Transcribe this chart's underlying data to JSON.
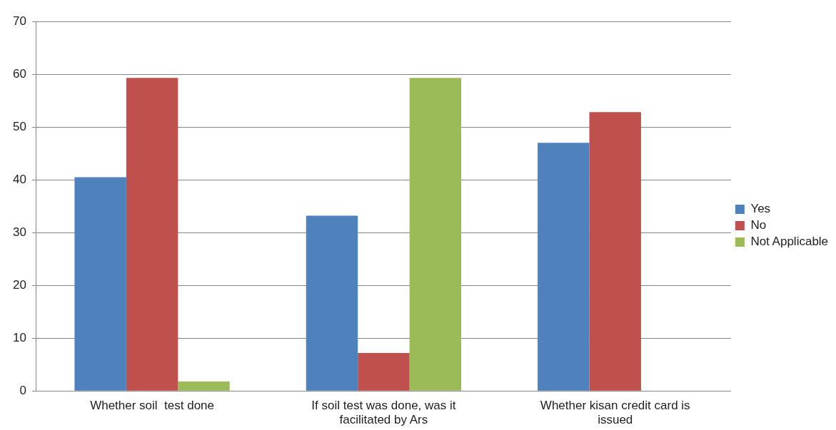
{
  "chart_data": {
    "type": "bar",
    "categories": [
      "Whether soil  test done",
      "If soil test was done, was it facilitated by Ars",
      "Whether kisan credit card is issued"
    ],
    "series": [
      {
        "name": "Yes",
        "color": "#4f81bd",
        "values": [
          40.5,
          33.2,
          47.0
        ]
      },
      {
        "name": "No",
        "color": "#c0504d",
        "values": [
          59.3,
          7.2,
          52.8
        ]
      },
      {
        "name": "Not Applicable",
        "color": "#9bbb59",
        "values": [
          1.8,
          59.3,
          null
        ]
      }
    ],
    "ylim": [
      0,
      70
    ],
    "yticks": [
      0,
      10,
      20,
      30,
      40,
      50,
      60,
      70
    ],
    "grid": "y",
    "legend": "right"
  }
}
